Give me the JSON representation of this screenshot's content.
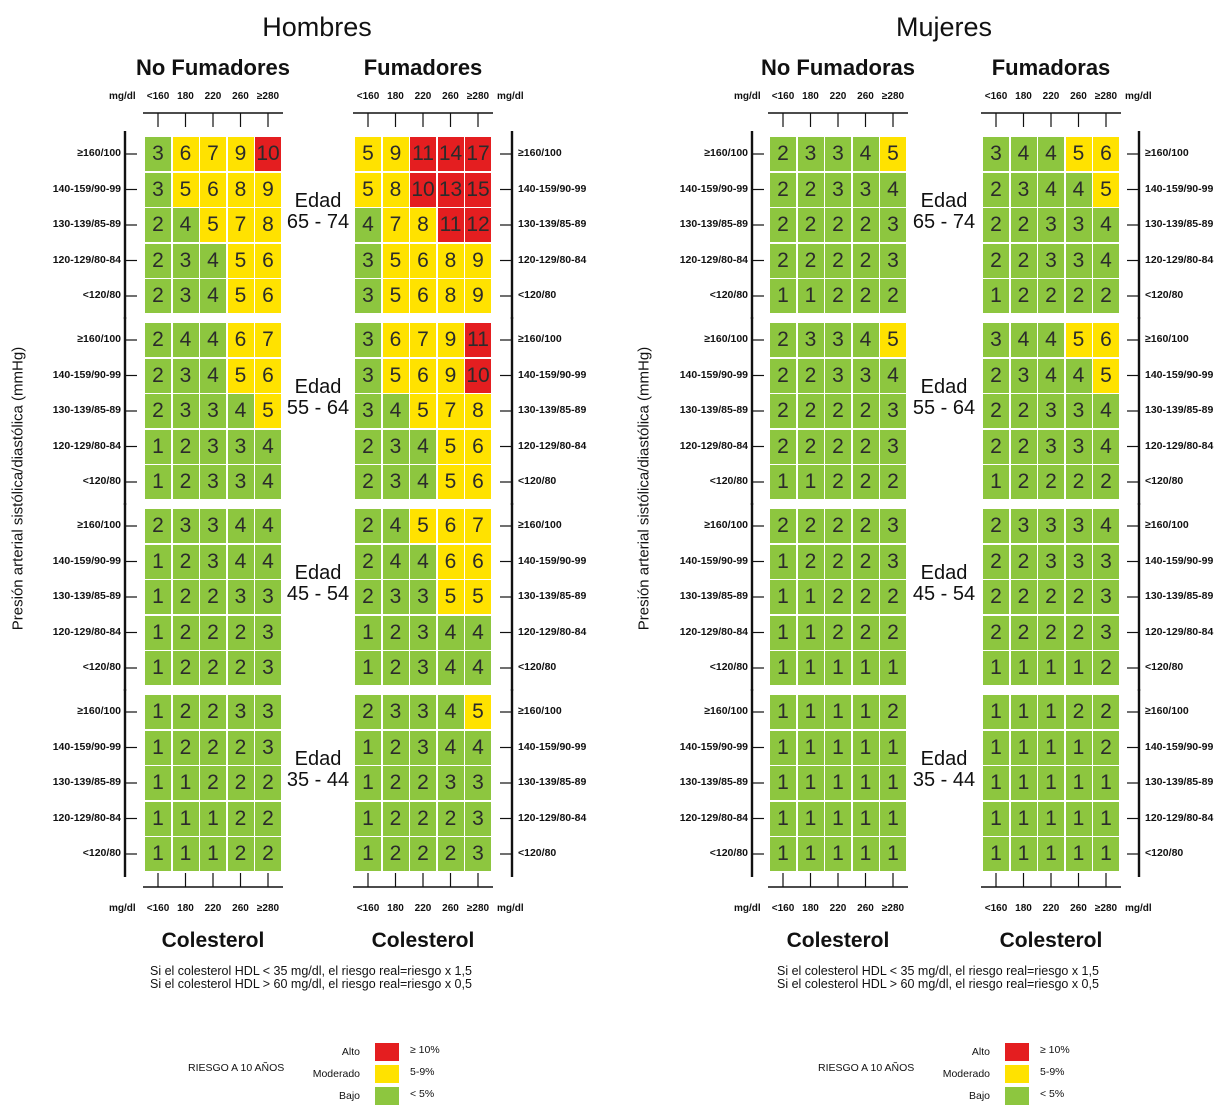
{
  "colors": {
    "high": "#e41e20",
    "moderate": "#ffe200",
    "low": "#8dc63f"
  },
  "units": "mg/dl",
  "cholesterol_ticks": [
    "<160",
    "180",
    "220",
    "260",
    "≥280"
  ],
  "bp_labels": [
    "≥160/100",
    "140-159/90-99",
    "130-139/85-89",
    "120-129/80-84",
    "<120/80"
  ],
  "y_axis_title": "Presión arterial sistólica/diastólica (mmHg)",
  "age_labels": [
    "Edad\n65 - 74",
    "Edad\n55 - 64",
    "Edad\n45 - 54",
    "Edad\n35 - 44"
  ],
  "x_axis_title": "Colesterol",
  "notes": [
    "Si el colesterol HDL < 35 mg/dl, el riesgo real=riesgo x 1,5",
    "Si el colesterol HDL > 60 mg/dl, el riesgo real=riesgo x 0,5"
  ],
  "legend": {
    "title": "RIESGO A 10 AÑOS",
    "items": [
      {
        "label": "Alto",
        "range": "≥ 10%",
        "level": "high"
      },
      {
        "label": "Moderado",
        "range": "5-9%",
        "level": "moderate"
      },
      {
        "label": "Bajo",
        "range": "< 5%",
        "level": "low"
      }
    ]
  },
  "chart_data": {
    "type": "table",
    "thresholds": {
      "high": 10,
      "moderate": 5
    },
    "panels": [
      {
        "sex": "Hombres",
        "groups": [
          {
            "title": "No Fumadores",
            "matrices": [
              [
                [
                  3,
                  6,
                  7,
                  9,
                  10
                ],
                [
                  3,
                  5,
                  6,
                  8,
                  9
                ],
                [
                  2,
                  4,
                  5,
                  7,
                  8
                ],
                [
                  2,
                  3,
                  4,
                  5,
                  6
                ],
                [
                  2,
                  3,
                  4,
                  5,
                  6
                ]
              ],
              [
                [
                  2,
                  4,
                  4,
                  6,
                  7
                ],
                [
                  2,
                  3,
                  4,
                  5,
                  6
                ],
                [
                  2,
                  3,
                  3,
                  4,
                  5
                ],
                [
                  1,
                  2,
                  3,
                  3,
                  4
                ],
                [
                  1,
                  2,
                  3,
                  3,
                  4
                ]
              ],
              [
                [
                  2,
                  3,
                  3,
                  4,
                  4
                ],
                [
                  1,
                  2,
                  3,
                  4,
                  4
                ],
                [
                  1,
                  2,
                  2,
                  3,
                  3
                ],
                [
                  1,
                  2,
                  2,
                  2,
                  3
                ],
                [
                  1,
                  2,
                  2,
                  2,
                  3
                ]
              ],
              [
                [
                  1,
                  2,
                  2,
                  3,
                  3
                ],
                [
                  1,
                  2,
                  2,
                  2,
                  3
                ],
                [
                  1,
                  1,
                  2,
                  2,
                  2
                ],
                [
                  1,
                  1,
                  1,
                  2,
                  2
                ],
                [
                  1,
                  1,
                  1,
                  2,
                  2
                ]
              ]
            ]
          },
          {
            "title": "Fumadores",
            "matrices": [
              [
                [
                  5,
                  9,
                  11,
                  14,
                  17
                ],
                [
                  5,
                  8,
                  10,
                  13,
                  15
                ],
                [
                  4,
                  7,
                  8,
                  11,
                  12
                ],
                [
                  3,
                  5,
                  6,
                  8,
                  9
                ],
                [
                  3,
                  5,
                  6,
                  8,
                  9
                ]
              ],
              [
                [
                  3,
                  6,
                  7,
                  9,
                  11
                ],
                [
                  3,
                  5,
                  6,
                  9,
                  10
                ],
                [
                  3,
                  4,
                  5,
                  7,
                  8
                ],
                [
                  2,
                  3,
                  4,
                  5,
                  6
                ],
                [
                  2,
                  3,
                  4,
                  5,
                  6
                ]
              ],
              [
                [
                  2,
                  4,
                  5,
                  6,
                  7
                ],
                [
                  2,
                  4,
                  4,
                  6,
                  6
                ],
                [
                  2,
                  3,
                  3,
                  5,
                  5
                ],
                [
                  1,
                  2,
                  3,
                  4,
                  4
                ],
                [
                  1,
                  2,
                  3,
                  4,
                  4
                ]
              ],
              [
                [
                  2,
                  3,
                  3,
                  4,
                  5
                ],
                [
                  1,
                  2,
                  3,
                  4,
                  4
                ],
                [
                  1,
                  2,
                  2,
                  3,
                  3
                ],
                [
                  1,
                  2,
                  2,
                  2,
                  3
                ],
                [
                  1,
                  2,
                  2,
                  2,
                  3
                ]
              ]
            ]
          }
        ]
      },
      {
        "sex": "Mujeres",
        "groups": [
          {
            "title": "No Fumadoras",
            "matrices": [
              [
                [
                  2,
                  3,
                  3,
                  4,
                  5
                ],
                [
                  2,
                  2,
                  3,
                  3,
                  4
                ],
                [
                  2,
                  2,
                  2,
                  2,
                  3
                ],
                [
                  2,
                  2,
                  2,
                  2,
                  3
                ],
                [
                  1,
                  1,
                  2,
                  2,
                  2
                ]
              ],
              [
                [
                  2,
                  3,
                  3,
                  4,
                  5
                ],
                [
                  2,
                  2,
                  3,
                  3,
                  4
                ],
                [
                  2,
                  2,
                  2,
                  2,
                  3
                ],
                [
                  2,
                  2,
                  2,
                  2,
                  3
                ],
                [
                  1,
                  1,
                  2,
                  2,
                  2
                ]
              ],
              [
                [
                  2,
                  2,
                  2,
                  2,
                  3
                ],
                [
                  1,
                  2,
                  2,
                  2,
                  3
                ],
                [
                  1,
                  1,
                  2,
                  2,
                  2
                ],
                [
                  1,
                  1,
                  2,
                  2,
                  2
                ],
                [
                  1,
                  1,
                  1,
                  1,
                  1
                ]
              ],
              [
                [
                  1,
                  1,
                  1,
                  1,
                  2
                ],
                [
                  1,
                  1,
                  1,
                  1,
                  1
                ],
                [
                  1,
                  1,
                  1,
                  1,
                  1
                ],
                [
                  1,
                  1,
                  1,
                  1,
                  1
                ],
                [
                  1,
                  1,
                  1,
                  1,
                  1
                ]
              ]
            ]
          },
          {
            "title": "Fumadoras",
            "matrices": [
              [
                [
                  3,
                  4,
                  4,
                  5,
                  6
                ],
                [
                  2,
                  3,
                  4,
                  4,
                  5
                ],
                [
                  2,
                  2,
                  3,
                  3,
                  4
                ],
                [
                  2,
                  2,
                  3,
                  3,
                  4
                ],
                [
                  1,
                  2,
                  2,
                  2,
                  2
                ]
              ],
              [
                [
                  3,
                  4,
                  4,
                  5,
                  6
                ],
                [
                  2,
                  3,
                  4,
                  4,
                  5
                ],
                [
                  2,
                  2,
                  3,
                  3,
                  4
                ],
                [
                  2,
                  2,
                  3,
                  3,
                  4
                ],
                [
                  1,
                  2,
                  2,
                  2,
                  2
                ]
              ],
              [
                [
                  2,
                  3,
                  3,
                  3,
                  4
                ],
                [
                  2,
                  2,
                  3,
                  3,
                  3
                ],
                [
                  2,
                  2,
                  2,
                  2,
                  3
                ],
                [
                  2,
                  2,
                  2,
                  2,
                  3
                ],
                [
                  1,
                  1,
                  1,
                  1,
                  2
                ]
              ],
              [
                [
                  1,
                  1,
                  1,
                  2,
                  2
                ],
                [
                  1,
                  1,
                  1,
                  1,
                  2
                ],
                [
                  1,
                  1,
                  1,
                  1,
                  1
                ],
                [
                  1,
                  1,
                  1,
                  1,
                  1
                ],
                [
                  1,
                  1,
                  1,
                  1,
                  1
                ]
              ]
            ]
          }
        ]
      }
    ]
  }
}
